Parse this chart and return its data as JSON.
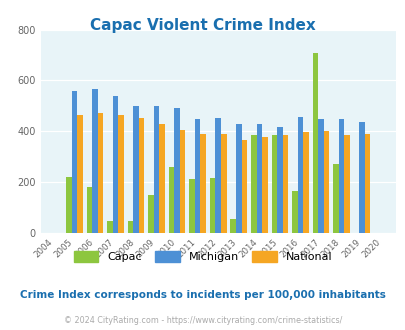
{
  "title": "Capac Violent Crime Index",
  "title_color": "#1a6faf",
  "years": [
    2004,
    2005,
    2006,
    2007,
    2008,
    2009,
    2010,
    2011,
    2012,
    2013,
    2014,
    2015,
    2016,
    2017,
    2018,
    2019,
    2020
  ],
  "capac": [
    0,
    220,
    180,
    45,
    45,
    150,
    260,
    210,
    215,
    55,
    385,
    385,
    165,
    710,
    270,
    0,
    0
  ],
  "michigan": [
    0,
    560,
    565,
    540,
    500,
    500,
    490,
    448,
    452,
    430,
    428,
    415,
    455,
    448,
    448,
    435,
    0
  ],
  "national": [
    0,
    465,
    472,
    465,
    452,
    427,
    403,
    388,
    390,
    366,
    377,
    385,
    397,
    400,
    383,
    388,
    0
  ],
  "capac_color": "#8dc63f",
  "michigan_color": "#4d90d5",
  "national_color": "#f5a623",
  "bg_color": "#e8f4f8",
  "ylim": [
    0,
    800
  ],
  "yticks": [
    0,
    200,
    400,
    600,
    800
  ],
  "xlabel_note": "Crime Index corresponds to incidents per 100,000 inhabitants",
  "footer": "© 2024 CityRating.com - https://www.cityrating.com/crime-statistics/",
  "legend_labels": [
    "Capac",
    "Michigan",
    "National"
  ],
  "bar_width": 0.27
}
